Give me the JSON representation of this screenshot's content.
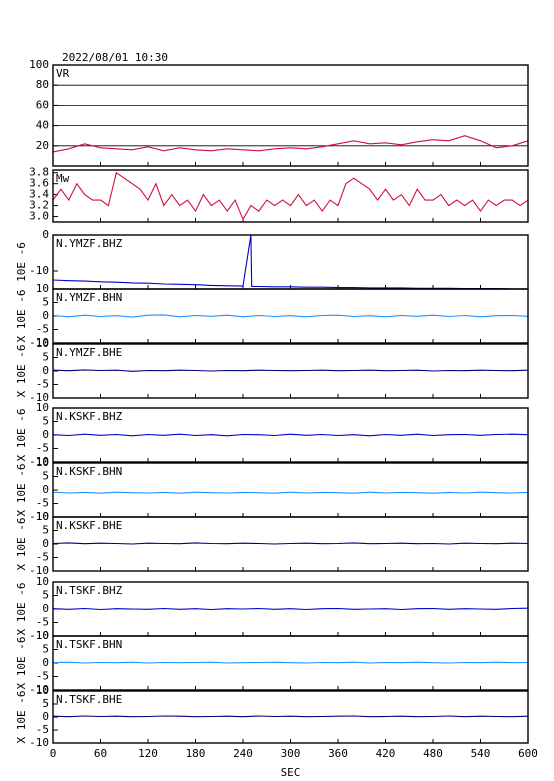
{
  "chart_data": [
    {
      "type": "line",
      "title": "2022/08/01 10:30",
      "xlim": [
        0,
        600
      ],
      "ylim": [
        0,
        100
      ],
      "yticks": [
        20,
        40,
        60,
        80,
        100
      ],
      "grid": true,
      "x": [
        0,
        20,
        40,
        60,
        80,
        100,
        120,
        140,
        160,
        180,
        200,
        220,
        240,
        260,
        280,
        300,
        320,
        340,
        360,
        380,
        400,
        420,
        440,
        460,
        480,
        500,
        520,
        540,
        560,
        580,
        600
      ],
      "series": [
        {
          "name": "VR",
          "color": "#d0103a",
          "values": [
            14,
            17,
            22,
            18,
            17,
            16,
            19,
            15,
            18,
            16,
            15,
            17,
            16,
            15,
            17,
            18,
            17,
            19,
            22,
            25,
            22,
            23,
            21,
            24,
            26,
            25,
            30,
            25,
            18,
            20,
            25
          ]
        }
      ]
    },
    {
      "type": "line",
      "xlim": [
        0,
        600
      ],
      "ylim": [
        2.9,
        3.85
      ],
      "yticks": [
        {
          "value": 3,
          "label": "3.0"
        },
        3.2,
        3.4,
        3.6,
        3.8
      ],
      "grid": false,
      "x": [
        0,
        10,
        20,
        30,
        40,
        50,
        60,
        70,
        80,
        90,
        100,
        110,
        120,
        130,
        140,
        150,
        160,
        170,
        180,
        190,
        200,
        210,
        220,
        230,
        240,
        250,
        260,
        270,
        280,
        290,
        300,
        310,
        320,
        330,
        340,
        350,
        360,
        370,
        380,
        390,
        400,
        410,
        420,
        430,
        440,
        450,
        460,
        470,
        480,
        490,
        500,
        510,
        520,
        530,
        540,
        550,
        560,
        570,
        580,
        590,
        600
      ],
      "series": [
        {
          "name": "Mw",
          "color": "#d0103a",
          "values": [
            3.3,
            3.5,
            3.3,
            3.6,
            3.4,
            3.3,
            3.3,
            3.2,
            3.8,
            3.7,
            3.6,
            3.5,
            3.3,
            3.6,
            3.2,
            3.4,
            3.2,
            3.3,
            3.1,
            3.4,
            3.2,
            3.3,
            3.1,
            3.3,
            2.95,
            3.2,
            3.1,
            3.3,
            3.2,
            3.3,
            3.2,
            3.4,
            3.2,
            3.3,
            3.1,
            3.3,
            3.2,
            3.6,
            3.7,
            3.6,
            3.5,
            3.3,
            3.5,
            3.3,
            3.4,
            3.2,
            3.5,
            3.3,
            3.3,
            3.4,
            3.2,
            3.3,
            3.2,
            3.3,
            3.1,
            3.3,
            3.2,
            3.3,
            3.3,
            3.2,
            3.3
          ]
        }
      ]
    },
    {
      "type": "line",
      "y_label": "10E -6",
      "xlim": [
        0,
        600
      ],
      "ylim": [
        -15,
        0
      ],
      "yticks": [
        0,
        -10
      ],
      "grid": false,
      "x": [
        0,
        20,
        40,
        60,
        80,
        100,
        120,
        140,
        160,
        180,
        200,
        220,
        240,
        250,
        251,
        260,
        280,
        300,
        320,
        340,
        360,
        380,
        400,
        420,
        440,
        460,
        480,
        500,
        520,
        540,
        560,
        580,
        600
      ],
      "series": [
        {
          "name": "N.YMZF.BHZ",
          "color": "#0000c8",
          "values": [
            -12.5,
            -12.7,
            -12.8,
            -13,
            -13.1,
            -13.3,
            -13.4,
            -13.6,
            -13.7,
            -13.8,
            -14,
            -14.1,
            -14.2,
            0,
            -14.3,
            -14.3,
            -14.4,
            -14.4,
            -14.5,
            -14.5,
            -14.6,
            -14.6,
            -14.7,
            -14.7,
            -14.7,
            -14.8,
            -14.8,
            -14.8,
            -14.9,
            -14.9,
            -14.9,
            -15,
            -15
          ]
        }
      ]
    },
    {
      "type": "line",
      "y_label": "X 10E -6",
      "xlim": [
        0,
        600
      ],
      "ylim": [
        -10,
        10
      ],
      "yticks": [
        10,
        5,
        0,
        -5,
        -10
      ],
      "grid": false,
      "x": [
        0,
        20,
        40,
        60,
        80,
        100,
        120,
        140,
        160,
        180,
        200,
        220,
        240,
        260,
        280,
        300,
        320,
        340,
        360,
        380,
        400,
        420,
        440,
        460,
        480,
        500,
        520,
        540,
        560,
        580,
        600
      ],
      "series": [
        {
          "name": "N.YMZF.BHN",
          "color": "#1e90ff",
          "values": [
            0.2,
            -0.3,
            0.3,
            -0.2,
            0.1,
            -0.4,
            0.3,
            0.4,
            -0.3,
            0.2,
            -0.1,
            0.3,
            -0.3,
            0.2,
            -0.2,
            0.1,
            -0.3,
            0.2,
            0.3,
            -0.2,
            0.1,
            -0.3,
            0.2,
            -0.1,
            0.3,
            -0.2,
            0.2,
            -0.3,
            0.1,
            0.2,
            -0.1
          ]
        }
      ]
    },
    {
      "type": "line",
      "y_label": "X 10E -6",
      "xlim": [
        0,
        600
      ],
      "ylim": [
        -10,
        10
      ],
      "yticks": [
        10,
        5,
        0,
        -5,
        -10
      ],
      "grid": false,
      "x": [
        0,
        20,
        40,
        60,
        80,
        100,
        120,
        140,
        160,
        180,
        200,
        220,
        240,
        260,
        280,
        300,
        320,
        340,
        360,
        380,
        400,
        420,
        440,
        460,
        480,
        500,
        520,
        540,
        560,
        580,
        600
      ],
      "series": [
        {
          "name": "N.YMZF.BHE",
          "color": "#000080",
          "values": [
            0.3,
            0.1,
            0.4,
            0.2,
            0.3,
            -0.1,
            0.2,
            0.1,
            0.3,
            0.2,
            0,
            0.2,
            0.1,
            0.3,
            0.2,
            0.1,
            0.2,
            0.3,
            0.1,
            0.2,
            0.3,
            0.1,
            0.2,
            0.3,
            0,
            0.2,
            0.1,
            0.3,
            0.2,
            0.1,
            0.3
          ]
        }
      ]
    },
    {
      "type": "line",
      "y_label": "X 10E -6",
      "xlim": [
        0,
        600
      ],
      "ylim": [
        -10,
        10
      ],
      "yticks": [
        10,
        5,
        0,
        -5,
        -10
      ],
      "grid": false,
      "x": [
        0,
        20,
        40,
        60,
        80,
        100,
        120,
        140,
        160,
        180,
        200,
        220,
        240,
        260,
        280,
        300,
        320,
        340,
        360,
        380,
        400,
        420,
        440,
        460,
        480,
        500,
        520,
        540,
        560,
        580,
        600
      ],
      "series": [
        {
          "name": "N.KSKF.BHZ",
          "color": "#0000c8",
          "values": [
            0.1,
            -0.2,
            0.3,
            -0.1,
            0.2,
            -0.3,
            0.2,
            -0.1,
            0.3,
            -0.2,
            0.1,
            -0.3,
            0.2,
            0.1,
            -0.2,
            0.3,
            -0.1,
            0.2,
            -0.2,
            0.1,
            -0.3,
            0.2,
            -0.1,
            0.3,
            -0.2,
            0.1,
            0.2,
            -0.1,
            0.2,
            0.3,
            0.1
          ]
        }
      ]
    },
    {
      "type": "line",
      "y_label": "X 10E -6",
      "xlim": [
        0,
        600
      ],
      "ylim": [
        -10,
        10
      ],
      "yticks": [
        10,
        5,
        0,
        -5,
        -10
      ],
      "grid": false,
      "x": [
        0,
        20,
        40,
        60,
        80,
        100,
        120,
        140,
        160,
        180,
        200,
        220,
        240,
        260,
        280,
        300,
        320,
        340,
        360,
        380,
        400,
        420,
        440,
        460,
        480,
        500,
        520,
        540,
        560,
        580,
        600
      ],
      "series": [
        {
          "name": "N.KSKF.BHN",
          "color": "#1e90ff",
          "values": [
            -0.8,
            -1.1,
            -0.9,
            -1.2,
            -0.8,
            -1,
            -1.1,
            -0.9,
            -1.2,
            -0.8,
            -1,
            -1.1,
            -0.9,
            -1,
            -1.2,
            -0.8,
            -1.1,
            -0.9,
            -1,
            -1.2,
            -0.8,
            -1.1,
            -0.9,
            -1,
            -1.2,
            -0.9,
            -1.1,
            -0.8,
            -1,
            -1.1,
            -0.9
          ]
        }
      ]
    },
    {
      "type": "line",
      "y_label": "X 10E -6",
      "xlim": [
        0,
        600
      ],
      "ylim": [
        -10,
        10
      ],
      "yticks": [
        10,
        5,
        0,
        -5,
        -10
      ],
      "grid": false,
      "x": [
        0,
        20,
        40,
        60,
        80,
        100,
        120,
        140,
        160,
        180,
        200,
        220,
        240,
        260,
        280,
        300,
        320,
        340,
        360,
        380,
        400,
        420,
        440,
        460,
        480,
        500,
        520,
        540,
        560,
        580,
        600
      ],
      "series": [
        {
          "name": "N.KSKF.BHE",
          "color": "#000080",
          "values": [
            0.2,
            0.4,
            0.1,
            0.3,
            0.2,
            0,
            0.3,
            0.2,
            0.1,
            0.4,
            0.2,
            0.1,
            0.3,
            0.2,
            0,
            0.2,
            0.3,
            0.1,
            0.2,
            0.4,
            0.1,
            0.2,
            0.3,
            0.1,
            0.2,
            0,
            0.3,
            0.2,
            0.1,
            0.3,
            0.2
          ]
        }
      ]
    },
    {
      "type": "line",
      "y_label": "X 10E -6",
      "xlim": [
        0,
        600
      ],
      "ylim": [
        -10,
        10
      ],
      "yticks": [
        10,
        5,
        0,
        -5,
        -10
      ],
      "grid": false,
      "x": [
        0,
        20,
        40,
        60,
        80,
        100,
        120,
        140,
        160,
        180,
        200,
        220,
        240,
        260,
        280,
        300,
        320,
        340,
        360,
        380,
        400,
        420,
        440,
        460,
        480,
        500,
        520,
        540,
        560,
        580,
        600
      ],
      "series": [
        {
          "name": "N.TSKF.BHZ",
          "color": "#0000c8",
          "values": [
            0.1,
            -0.1,
            0.2,
            -0.2,
            0.1,
            0,
            -0.1,
            0.2,
            -0.1,
            0.1,
            -0.2,
            0.1,
            0,
            0.2,
            -0.1,
            0.1,
            -0.2,
            0.1,
            0.2,
            -0.1,
            0,
            0.1,
            -0.2,
            0.1,
            0.2,
            -0.1,
            0.1,
            0,
            -0.1,
            0.2,
            0.3
          ]
        }
      ]
    },
    {
      "type": "line",
      "y_label": "X 10E -6",
      "xlim": [
        0,
        600
      ],
      "ylim": [
        -10,
        10
      ],
      "yticks": [
        10,
        5,
        0,
        -5,
        -10
      ],
      "grid": false,
      "x": [
        0,
        20,
        40,
        60,
        80,
        100,
        120,
        140,
        160,
        180,
        200,
        220,
        240,
        260,
        280,
        300,
        320,
        340,
        360,
        380,
        400,
        420,
        440,
        460,
        480,
        500,
        520,
        540,
        560,
        580,
        600
      ],
      "series": [
        {
          "name": "N.TSKF.BHN",
          "color": "#1e90ff",
          "values": [
            0.1,
            0.3,
            0,
            0.2,
            0.1,
            0.3,
            0,
            0.2,
            0.1,
            0.2,
            0.3,
            0,
            0.1,
            0.2,
            0.3,
            0.1,
            0,
            0.2,
            0.1,
            0.3,
            0,
            0.2,
            0.1,
            0.3,
            0.1,
            0,
            0.2,
            0.1,
            0.3,
            0.1,
            0.2
          ]
        }
      ]
    },
    {
      "type": "line",
      "y_label": "X 10E -6",
      "x_label": "SEC",
      "xlim": [
        0,
        600
      ],
      "ylim": [
        -10,
        10
      ],
      "yticks": [
        10,
        5,
        0,
        -5,
        -10
      ],
      "grid": false,
      "xticks": [
        0,
        60,
        120,
        180,
        240,
        300,
        360,
        420,
        480,
        540,
        600
      ],
      "x": [
        0,
        20,
        40,
        60,
        80,
        100,
        120,
        140,
        160,
        180,
        200,
        220,
        240,
        260,
        280,
        300,
        320,
        340,
        360,
        380,
        400,
        420,
        440,
        460,
        480,
        500,
        520,
        540,
        560,
        580,
        600
      ],
      "series": [
        {
          "name": "N.TSKF.BHE",
          "color": "#000080",
          "values": [
            0.3,
            0.1,
            0.4,
            0.2,
            0.3,
            0.1,
            0.2,
            0.4,
            0.3,
            0.1,
            0.2,
            0.3,
            0.1,
            0.4,
            0.2,
            0.3,
            0.1,
            0.2,
            0.3,
            0.4,
            0.1,
            0.2,
            0.3,
            0.1,
            0.2,
            0.4,
            0.1,
            0.3,
            0.2,
            0.1,
            0.3
          ]
        }
      ]
    }
  ]
}
